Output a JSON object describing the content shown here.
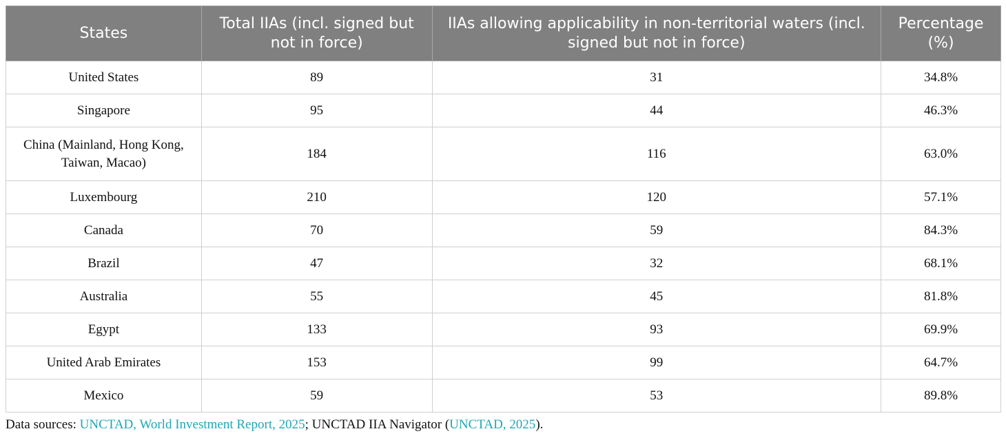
{
  "table": {
    "headers": [
      "States",
      "Total IIAs (incl. signed but not in force)",
      "IIAs allowing applicability in non-territorial waters (incl. signed but not in force)",
      "Percentage (%)"
    ],
    "rows": [
      [
        "United States",
        "89",
        "31",
        "34.8%"
      ],
      [
        "Singapore",
        "95",
        "44",
        "46.3%"
      ],
      [
        "China (Mainland, Hong Kong, Taiwan, Macao)",
        "184",
        "116",
        "63.0%"
      ],
      [
        "Luxembourg",
        "210",
        "120",
        "57.1%"
      ],
      [
        "Canada",
        "70",
        "59",
        "84.3%"
      ],
      [
        "Brazil",
        "47",
        "32",
        "68.1%"
      ],
      [
        "Australia",
        "55",
        "45",
        "81.8%"
      ],
      [
        "Egypt",
        "133",
        "93",
        "69.9%"
      ],
      [
        "United Arab Emirates",
        "153",
        "99",
        "64.7%"
      ],
      [
        "Mexico",
        "59",
        "53",
        "89.8%"
      ]
    ]
  },
  "footnote": {
    "prefix": "Data sources: ",
    "link1": "UNCTAD, World Investment Report, 2025",
    "middle": "; UNCTAD IIA Navigator (",
    "link2": "UNCTAD, 2025",
    "suffix": ")."
  },
  "colors": {
    "header_bg": "#808080",
    "link": "#1ea7b5"
  }
}
